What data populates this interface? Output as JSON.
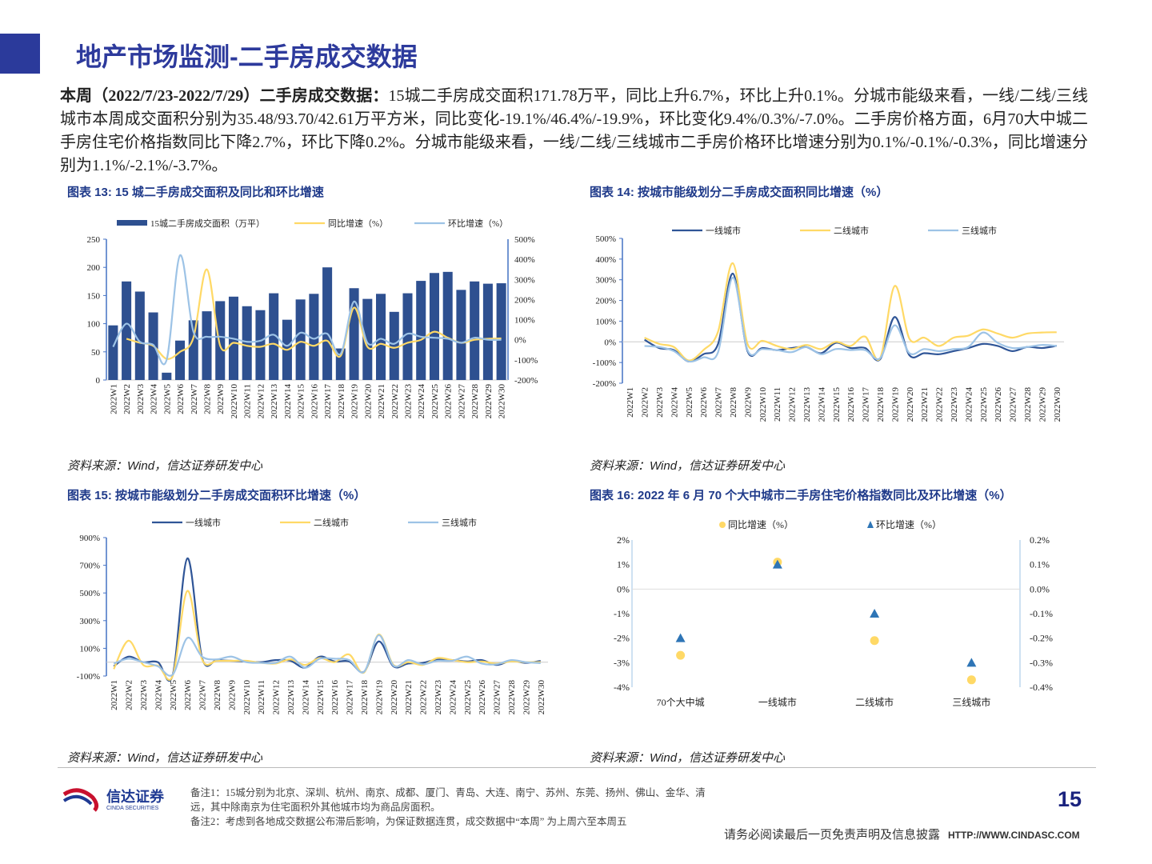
{
  "header": {
    "title": "地产市场监测-二手房成交数据",
    "accent": "#2b3a9b"
  },
  "summary": {
    "lead": "本周（2022/7/23-2022/7/29）二手房成交数据：",
    "body": "15城二手房成交面积171.78万平，同比上升6.7%，环比上升0.1%。分城市能级来看，一线/二线/三线城市本周成交面积分别为35.48/93.70/42.61万平方米，同比变化-19.1%/46.4%/-19.9%，环比变化9.4%/0.3%/-7.0%。二手房价格方面，6月70大中城二手房住宅价格指数同比下降2.7%，环比下降0.2%。分城市能级来看，一线/二线/三线城市二手房价格环比增速分别为0.1%/-0.1%/-0.3%，同比增速分别为1.1%/-2.1%/-3.7%。"
  },
  "figures": [
    {
      "title": "图表 13:  15 城二手房成交面积及同比和环比增速",
      "source": "资料来源：Wind，信达证券研发中心"
    },
    {
      "title": "图表 14:  按城市能级划分二手房成交面积同比增速（%）",
      "source": "资料来源：Wind，信达证券研发中心"
    },
    {
      "title": "图表 15:  按城市能级划分二手房成交面积环比增速（%）",
      "source": "资料来源：Wind，信达证券研发中心"
    },
    {
      "title": "图表 16:  2022 年 6 月 70 个大中城市二手房住宅价格指数同比及环比增速（%）",
      "source": "资料来源：Wind，信达证券研发中心"
    }
  ],
  "chart_data": [
    {
      "type": "bar+line",
      "categories": [
        "2022W1",
        "2022W2",
        "2022W3",
        "2022W4",
        "2022W5",
        "2022W6",
        "2022W7",
        "2022W8",
        "2022W9",
        "2022W10",
        "2022W11",
        "2022W12",
        "2022W13",
        "2022W14",
        "2022W15",
        "2022W16",
        "2022W17",
        "2022W18",
        "2022W19",
        "2022W20",
        "2022W21",
        "2022W22",
        "2022W23",
        "2022W24",
        "2022W25",
        "2022W26",
        "2022W27",
        "2022W28",
        "2022W29",
        "2022W30"
      ],
      "ylim": [
        0,
        250
      ],
      "yticks": [
        0,
        50,
        100,
        150,
        200,
        250
      ],
      "y2lim": [
        -200,
        500
      ],
      "y2ticks": [
        -200,
        -100,
        0,
        100,
        200,
        300,
        400,
        500
      ],
      "legend": "top",
      "series": [
        {
          "name": "15城二手房成交面积（万平）",
          "kind": "bar",
          "axis": "left",
          "color": "#2e5090",
          "values": [
            97,
            175,
            157,
            120,
            13,
            70,
            106,
            122,
            140,
            148,
            131,
            124,
            154,
            107,
            143,
            153,
            200,
            56,
            163,
            144,
            153,
            121,
            154,
            176,
            190,
            192,
            160,
            175,
            171,
            171.78
          ]
        },
        {
          "name": "同比增速（%）",
          "kind": "line",
          "axis": "right",
          "color": "#ffd966",
          "values": [
            null,
            5,
            -15,
            -30,
            -95,
            -60,
            10,
            350,
            -30,
            -15,
            -30,
            -35,
            -20,
            -50,
            -10,
            -30,
            -5,
            -80,
            160,
            -35,
            -20,
            -40,
            -15,
            0,
            40,
            10,
            -15,
            0,
            5,
            6.7
          ]
        },
        {
          "name": "环比增速（%）",
          "kind": "line",
          "axis": "right",
          "color": "#9dc3e6",
          "values": [
            -35,
            80,
            -10,
            -25,
            -100,
            420,
            40,
            15,
            15,
            5,
            -10,
            -5,
            25,
            -30,
            35,
            5,
            30,
            -70,
            190,
            -15,
            5,
            -20,
            30,
            15,
            10,
            5,
            -15,
            10,
            0,
            0.1
          ]
        }
      ]
    },
    {
      "type": "line",
      "categories": [
        "2022W1",
        "2022W2",
        "2022W3",
        "2022W4",
        "2022W5",
        "2022W6",
        "2022W7",
        "2022W8",
        "2022W9",
        "2022W10",
        "2022W11",
        "2022W12",
        "2022W13",
        "2022W14",
        "2022W15",
        "2022W16",
        "2022W17",
        "2022W18",
        "2022W19",
        "2022W20",
        "2022W21",
        "2022W22",
        "2022W23",
        "2022W24",
        "2022W25",
        "2022W26",
        "2022W27",
        "2022W28",
        "2022W29",
        "2022W30"
      ],
      "ylim": [
        -200,
        500
      ],
      "yticks": [
        -200,
        -100,
        0,
        100,
        200,
        300,
        400,
        500
      ],
      "unit": "%",
      "legend": "top",
      "series": [
        {
          "name": "一线城市",
          "color": "#2f5597",
          "values": [
            null,
            10,
            -30,
            -40,
            -95,
            -60,
            -10,
            330,
            -45,
            -30,
            -40,
            -30,
            -25,
            -55,
            -5,
            -30,
            -30,
            -85,
            120,
            -65,
            -55,
            -60,
            -45,
            -30,
            -10,
            -20,
            -45,
            -25,
            -30,
            -19.1
          ]
        },
        {
          "name": "二线城市",
          "color": "#ffd966",
          "values": [
            null,
            20,
            -10,
            -25,
            -90,
            -40,
            50,
            380,
            -10,
            5,
            -20,
            -35,
            -15,
            -35,
            0,
            -20,
            25,
            -80,
            270,
            15,
            20,
            -20,
            20,
            30,
            60,
            40,
            20,
            40,
            45,
            46.4
          ]
        },
        {
          "name": "三线城市",
          "color": "#9dc3e6",
          "values": [
            null,
            -20,
            -25,
            -45,
            -95,
            -75,
            -50,
            310,
            -40,
            -35,
            -40,
            -50,
            -25,
            -60,
            -35,
            -40,
            -40,
            -80,
            80,
            -55,
            -35,
            -45,
            -35,
            -25,
            45,
            -5,
            -30,
            -25,
            -15,
            -19.9
          ]
        }
      ]
    },
    {
      "type": "line",
      "categories": [
        "2022W1",
        "2022W2",
        "2022W3",
        "2022W4",
        "2022W5",
        "2022W6",
        "2022W7",
        "2022W8",
        "2022W9",
        "2022W10",
        "2022W11",
        "2022W12",
        "2022W13",
        "2022W14",
        "2022W15",
        "2022W16",
        "2022W17",
        "2022W18",
        "2022W19",
        "2022W20",
        "2022W21",
        "2022W22",
        "2022W23",
        "2022W24",
        "2022W25",
        "2022W26",
        "2022W27",
        "2022W28",
        "2022W29",
        "2022W30"
      ],
      "ylim": [
        -100,
        900
      ],
      "yticks": [
        -100,
        100,
        300,
        500,
        700,
        900
      ],
      "unit": "%",
      "legend": "top",
      "series": [
        {
          "name": "一线城市",
          "color": "#2f5597",
          "values": [
            -30,
            40,
            0,
            0,
            -95,
            750,
            30,
            15,
            10,
            5,
            0,
            15,
            10,
            -40,
            40,
            5,
            5,
            -70,
            150,
            -30,
            -10,
            -5,
            20,
            15,
            5,
            15,
            -20,
            10,
            -5,
            9.4
          ]
        },
        {
          "name": "二线城市",
          "color": "#ffd966",
          "values": [
            -50,
            155,
            -20,
            -25,
            -100,
            515,
            20,
            10,
            10,
            10,
            -5,
            -10,
            20,
            -20,
            30,
            0,
            55,
            -75,
            200,
            -20,
            0,
            -20,
            30,
            15,
            0,
            5,
            -10,
            5,
            0,
            0.3
          ]
        },
        {
          "name": "三线城市",
          "color": "#9dc3e6",
          "values": [
            -10,
            25,
            0,
            -30,
            -90,
            175,
            40,
            20,
            40,
            0,
            -5,
            -5,
            40,
            -40,
            25,
            25,
            15,
            -70,
            195,
            -25,
            15,
            -15,
            10,
            10,
            40,
            -10,
            -15,
            15,
            0,
            -7.0
          ]
        }
      ]
    },
    {
      "type": "scatter",
      "categories": [
        "70个大中城",
        "一线城市",
        "二线城市",
        "三线城市"
      ],
      "ylim": [
        -4,
        2
      ],
      "yticks": [
        -4,
        -3,
        -2,
        -1,
        0,
        1,
        2
      ],
      "y2lim": [
        -0.4,
        0.2
      ],
      "y2ticks": [
        -0.4,
        -0.3,
        -0.2,
        -0.1,
        0.0,
        0.1,
        0.2
      ],
      "legend": "top",
      "series": [
        {
          "name": "同比增速（%）",
          "axis": "left",
          "marker": "circle",
          "color": "#ffd966",
          "values": [
            -2.7,
            1.1,
            -2.1,
            -3.7
          ]
        },
        {
          "name": "环比增速（%）",
          "axis": "right",
          "marker": "triangle",
          "color": "#2e75b6",
          "values": [
            -0.2,
            0.1,
            -0.1,
            -0.3
          ]
        }
      ]
    }
  ],
  "footer": {
    "logo_text": "信达证券",
    "logo_sub": "CINDA SECURITIES",
    "note1": "备注1：15城分别为北京、深圳、杭州、南京、成都、厦门、青岛、大连、南宁、苏州、东莞、扬州、佛山、金华、清远，其中除南京为住宅面积外其他城市均为商品房面积。",
    "note2": "备注2：考虑到各地成交数据公布滞后影响，为保证数据连贯，成交数据中“本周” 为上周六至本周五",
    "page": "15",
    "disclaimer": "请务必阅读最后一页免责声明及信息披露",
    "url": "HTTP://WWW.CINDASC.COM"
  }
}
